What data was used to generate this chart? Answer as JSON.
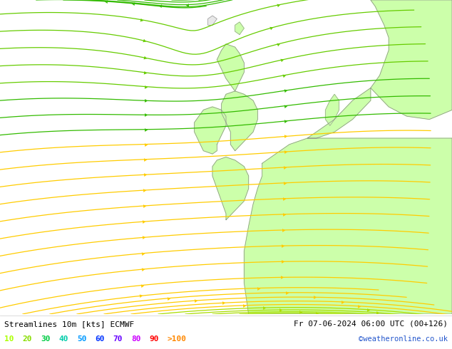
{
  "title_left": "Streamlines 10m [kts] ECMWF",
  "title_right": "Fr 07-06-2024 06:00 UTC (00+126)",
  "credit": "©weatheronline.co.uk",
  "legend_values": [
    "10",
    "20",
    "30",
    "40",
    "50",
    "60",
    "70",
    "80",
    "90",
    ">100"
  ],
  "legend_colors": [
    "#aaff00",
    "#88dd00",
    "#00cc44",
    "#00ddaa",
    "#00aaff",
    "#0055ff",
    "#5500ff",
    "#aa00ff",
    "#ff0000",
    "#ff8800"
  ],
  "ocean_color": "#e0e0e0",
  "land_color": "#ccffaa",
  "coast_color": "#888888",
  "streamline_colors": {
    "yellow": "#ffcc00",
    "yellow_green": "#aadd00",
    "green": "#22bb00",
    "cyan_green": "#00dd88",
    "light_green": "#88ee44"
  },
  "fig_width": 6.34,
  "fig_height": 4.9,
  "dpi": 100
}
